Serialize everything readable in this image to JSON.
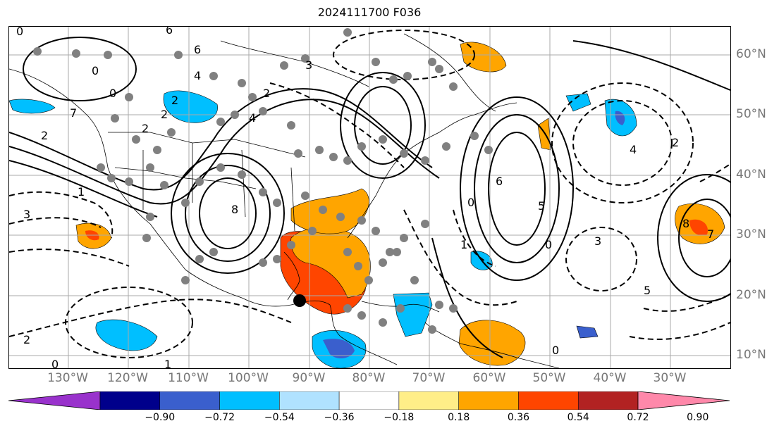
{
  "title": "2024111700 F036",
  "lat_labels": [
    "60°N",
    "50°N",
    "40°N",
    "30°N",
    "20°N",
    "10°N"
  ],
  "lon_labels": [
    "130°W",
    "120°W",
    "110°W",
    "100°W",
    "90°W",
    "80°W",
    "70°W",
    "60°W",
    "50°W",
    "40°W",
    "30°W"
  ],
  "colorbar": {
    "colors": [
      "#9932cc",
      "#00008b",
      "#3a5fcd",
      "#00bfff",
      "#b0e2ff",
      "#ffffff",
      "#ffee88",
      "#ffa500",
      "#ff4500",
      "#b22222",
      "#ff88aa"
    ],
    "ticks": [
      "−0.90",
      "−0.72",
      "−0.54",
      "−0.36",
      "−0.18",
      "0.18",
      "0.36",
      "0.54",
      "0.72",
      "0.90"
    ]
  },
  "contour_labels": [
    "0",
    "6",
    "6",
    "4",
    "0",
    "7",
    "2",
    "0",
    "2",
    "1",
    "3",
    "2",
    "4",
    "3",
    "2",
    "2",
    "8",
    "6",
    "0",
    "5",
    "8",
    "7",
    "1",
    "0",
    "2",
    "4",
    "3",
    "5",
    "2",
    "0",
    "1",
    "0"
  ]
}
